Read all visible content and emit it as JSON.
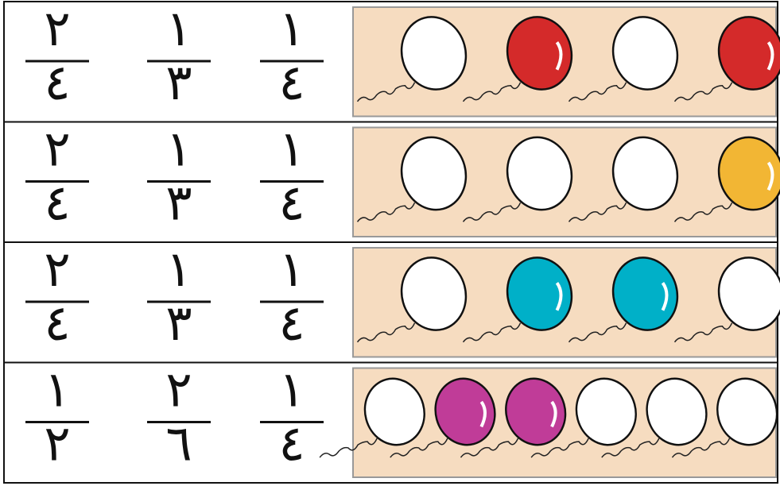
{
  "rows": [
    {
      "fractions": [
        {
          "numerator": "٢",
          "denominator": "٤"
        },
        {
          "numerator": "١",
          "denominator": "٣"
        },
        {
          "numerator": "١",
          "denominator": "٤"
        }
      ],
      "balloons": [
        "#ffffff",
        "#d42a2a",
        "#ffffff",
        "#d42a2a"
      ]
    },
    {
      "fractions": [
        {
          "numerator": "٢",
          "denominator": "٤"
        },
        {
          "numerator": "١",
          "denominator": "٣"
        },
        {
          "numerator": "١",
          "denominator": "٤"
        }
      ],
      "balloons": [
        "#ffffff",
        "#ffffff",
        "#ffffff",
        "#f2b634"
      ]
    },
    {
      "fractions": [
        {
          "numerator": "٢",
          "denominator": "٤"
        },
        {
          "numerator": "١",
          "denominator": "٣"
        },
        {
          "numerator": "١",
          "denominator": "٤"
        }
      ],
      "balloons": [
        "#ffffff",
        "#00b0c8",
        "#00b0c8",
        "#ffffff"
      ]
    },
    {
      "fractions": [
        {
          "numerator": "١",
          "denominator": "٢"
        },
        {
          "numerator": "٢",
          "denominator": "٦"
        },
        {
          "numerator": "١",
          "denominator": "٤"
        }
      ],
      "balloons": [
        "#ffffff",
        "#c03c98",
        "#c03c98",
        "#ffffff",
        "#ffffff",
        "#ffffff"
      ]
    }
  ]
}
